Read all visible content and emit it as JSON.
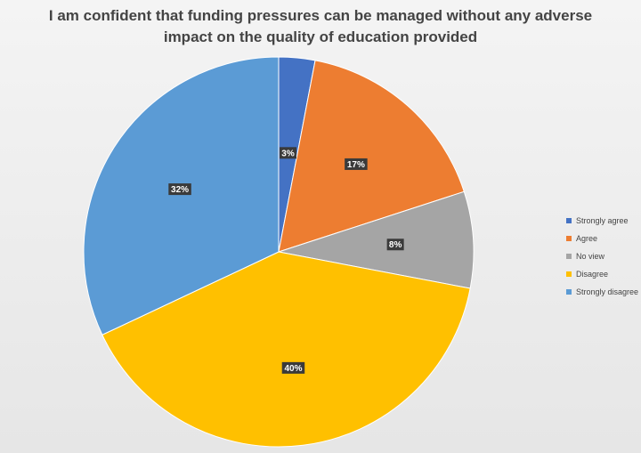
{
  "chart_data": {
    "type": "pie",
    "title_lines": [
      "I am confident that funding pressures can be managed without any adverse",
      "impact on the quality of education provided"
    ],
    "slices": [
      {
        "name": "Strongly agree",
        "value": 3,
        "label": "3%",
        "color": "#4472C4"
      },
      {
        "name": "Agree",
        "value": 17,
        "label": "17%",
        "color": "#ED7D31"
      },
      {
        "name": "No view",
        "value": 8,
        "label": "8%",
        "color": "#A5A5A5"
      },
      {
        "name": "Disagree",
        "value": 40,
        "label": "40%",
        "color": "#FFC000"
      },
      {
        "name": "Strongly disagree",
        "value": 32,
        "label": "32%",
        "color": "#5B9BD5"
      }
    ],
    "legend_position": "right"
  }
}
